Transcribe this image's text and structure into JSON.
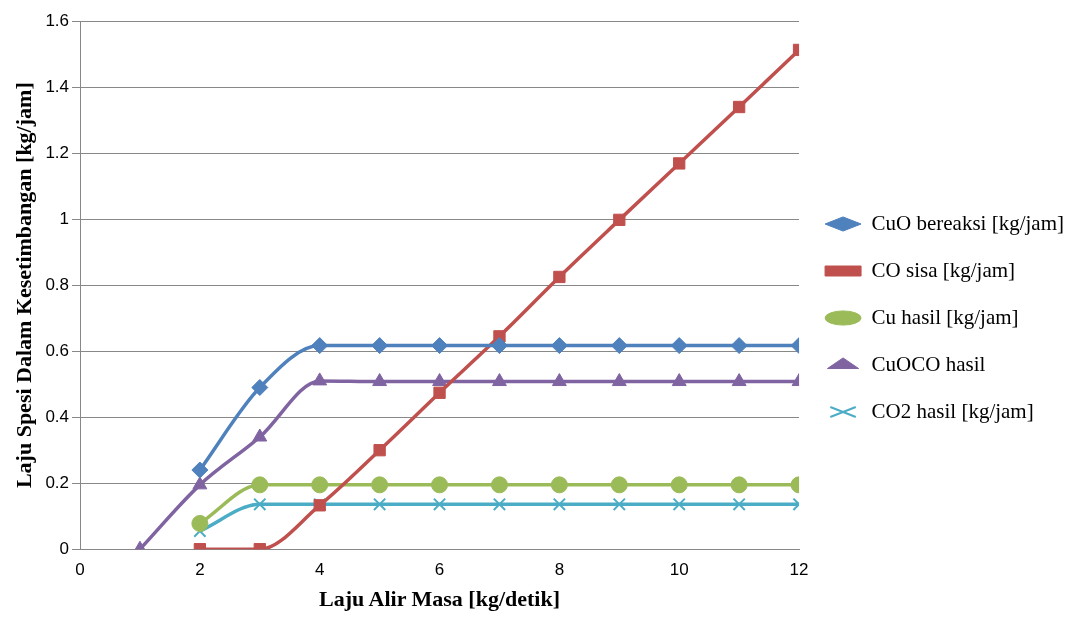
{
  "chart_data": {
    "type": "line",
    "xlabel": "Laju Alir Masa [kg/detik]",
    "ylabel": "Laju Spesi Dalam Kesetimbangan [kg/jam]",
    "xlim": [
      0,
      12
    ],
    "xticks": [
      0,
      2,
      4,
      6,
      8,
      10,
      12
    ],
    "ylim": [
      0,
      1.6
    ],
    "yticks": [
      0,
      0.2,
      0.4,
      0.6,
      0.8,
      1,
      1.2,
      1.4,
      1.6
    ],
    "grid": "y",
    "legend": "right",
    "series": [
      {
        "name": "CuO bereaksi [kg/jam]",
        "color": "#4f81bd",
        "marker": "diamond",
        "x": [
          2,
          3,
          4,
          5,
          6,
          7,
          8,
          9,
          10,
          11,
          12
        ],
        "values": [
          0.24,
          0.49,
          0.617,
          0.617,
          0.617,
          0.617,
          0.617,
          0.617,
          0.617,
          0.617,
          0.617
        ]
      },
      {
        "name": "CO sisa [kg/jam]",
        "color": "#c0504d",
        "marker": "square",
        "x": [
          2,
          3,
          4,
          5,
          6,
          7,
          8,
          9,
          10,
          11,
          12
        ],
        "values": [
          0.0,
          0.0,
          0.133,
          0.3,
          0.474,
          0.645,
          0.825,
          0.998,
          1.169,
          1.34,
          1.513
        ]
      },
      {
        "name": "Cu hasil [kg/jam]",
        "color": "#9bbb59",
        "marker": "circle",
        "x": [
          2,
          3,
          4,
          5,
          6,
          7,
          8,
          9,
          10,
          11,
          12
        ],
        "values": [
          0.078,
          0.195,
          0.195,
          0.195,
          0.195,
          0.195,
          0.195,
          0.195,
          0.195,
          0.195,
          0.195
        ]
      },
      {
        "name": "CuOCO hasil",
        "color": "#8064a2",
        "marker": "triangle",
        "x": [
          1,
          2,
          3,
          4,
          5,
          6,
          7,
          8,
          9,
          10,
          11,
          12
        ],
        "values": [
          0,
          0.195,
          0.34,
          0.51,
          0.508,
          0.508,
          0.508,
          0.508,
          0.508,
          0.508,
          0.508,
          0.508
        ]
      },
      {
        "name": "CO2 hasil [kg/jam]",
        "color": "#4bacc6",
        "marker": "cross",
        "x": [
          2,
          3,
          4,
          5,
          6,
          7,
          8,
          9,
          10,
          11,
          12
        ],
        "values": [
          0.055,
          0.136,
          0.136,
          0.136,
          0.136,
          0.136,
          0.136,
          0.136,
          0.136,
          0.136,
          0.136
        ]
      }
    ]
  }
}
